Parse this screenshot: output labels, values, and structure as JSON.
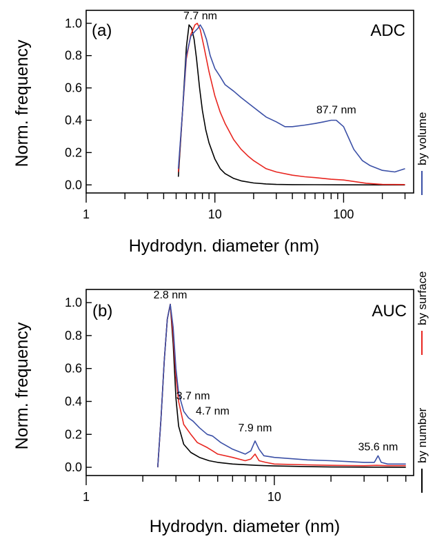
{
  "chart_data": [
    {
      "type": "line",
      "panel_label": "(a)",
      "method": "ADC",
      "xlabel": "Hydrodyn. diameter (nm)",
      "ylabel": "Norm. frequency",
      "xscale": "log",
      "xlim": [
        1,
        350
      ],
      "ylim": [
        -0.05,
        1.08
      ],
      "xticks": [
        1,
        10,
        100
      ],
      "xtick_labels": [
        "1",
        "10",
        "100"
      ],
      "yticks": [
        0.0,
        0.2,
        0.4,
        0.6,
        0.8,
        1.0
      ],
      "ytick_labels": [
        "0.0",
        "0.2",
        "0.4",
        "0.6",
        "0.8",
        "1.0"
      ],
      "annotations": [
        {
          "text": "7.7 nm",
          "x": 7.7,
          "y": 1.0
        },
        {
          "text": "87.7 nm",
          "x": 87.7,
          "y": 0.4
        }
      ],
      "series": [
        {
          "name": "by number",
          "color": "#000000",
          "x": [
            5.2,
            5.6,
            6.0,
            6.3,
            6.6,
            6.9,
            7.2,
            7.6,
            8.0,
            8.5,
            9.0,
            10,
            11,
            12,
            14,
            16,
            20,
            25,
            30,
            40,
            60,
            100,
            200,
            300
          ],
          "y": [
            0.05,
            0.45,
            0.85,
            0.99,
            0.97,
            0.9,
            0.78,
            0.6,
            0.46,
            0.34,
            0.26,
            0.16,
            0.1,
            0.07,
            0.04,
            0.025,
            0.012,
            0.006,
            0.003,
            0.0015,
            0.001,
            0.0005,
            0.0,
            0.0
          ]
        },
        {
          "name": "by surface",
          "color": "#e8251f",
          "x": [
            5.2,
            5.6,
            6.0,
            6.5,
            7.0,
            7.3,
            7.7,
            8.2,
            9,
            10,
            11,
            12,
            14,
            16,
            18,
            20,
            25,
            30,
            40,
            50,
            60,
            80,
            100,
            150,
            200,
            300
          ],
          "y": [
            0.08,
            0.45,
            0.78,
            0.93,
            0.99,
            1.0,
            0.96,
            0.86,
            0.7,
            0.55,
            0.45,
            0.38,
            0.28,
            0.22,
            0.18,
            0.15,
            0.1,
            0.08,
            0.06,
            0.05,
            0.045,
            0.035,
            0.03,
            0.01,
            0.003,
            0.002
          ]
        },
        {
          "name": "by volume",
          "color": "#3a4fa6",
          "x": [
            5.2,
            5.6,
            6.0,
            6.5,
            7.0,
            7.4,
            7.7,
            8.1,
            8.6,
            9.2,
            10,
            11,
            12,
            14,
            16,
            20,
            25,
            30,
            35,
            40,
            50,
            60,
            70,
            80,
            87.7,
            100,
            120,
            140,
            160,
            200,
            250,
            300
          ],
          "y": [
            0.1,
            0.45,
            0.8,
            0.92,
            0.95,
            0.97,
            0.99,
            0.96,
            0.9,
            0.8,
            0.72,
            0.67,
            0.62,
            0.58,
            0.54,
            0.48,
            0.42,
            0.39,
            0.36,
            0.36,
            0.37,
            0.38,
            0.39,
            0.4,
            0.4,
            0.36,
            0.22,
            0.15,
            0.12,
            0.09,
            0.08,
            0.1
          ]
        }
      ]
    },
    {
      "type": "line",
      "panel_label": "(b)",
      "method": "AUC",
      "xlabel": "Hydrodyn. diameter (nm)",
      "ylabel": "Norm. frequency",
      "xscale": "log",
      "xlim": [
        1,
        55
      ],
      "ylim": [
        -0.05,
        1.08
      ],
      "xticks": [
        1,
        10
      ],
      "xtick_labels": [
        "1",
        "10"
      ],
      "yticks": [
        0.0,
        0.2,
        0.4,
        0.6,
        0.8,
        1.0
      ],
      "ytick_labels": [
        "0.0",
        "0.2",
        "0.4",
        "0.6",
        "0.8",
        "1.0"
      ],
      "annotations": [
        {
          "text": "2.8 nm",
          "x": 2.8,
          "y": 1.0
        },
        {
          "text": "3.7 nm",
          "x": 3.7,
          "y": 0.32
        },
        {
          "text": "4.7 nm",
          "x": 4.7,
          "y": 0.22
        },
        {
          "text": "7.9 nm",
          "x": 7.9,
          "y": 0.16
        },
        {
          "text": "35.6 nm",
          "x": 35.6,
          "y": 0.07
        }
      ],
      "series": [
        {
          "name": "by number",
          "color": "#000000",
          "x": [
            2.4,
            2.5,
            2.6,
            2.7,
            2.8,
            2.9,
            3.0,
            3.1,
            3.3,
            3.6,
            4.0,
            4.5,
            5,
            6,
            8,
            10,
            15,
            20,
            30,
            40,
            50
          ],
          "y": [
            0.0,
            0.3,
            0.65,
            0.9,
            0.99,
            0.75,
            0.42,
            0.25,
            0.14,
            0.09,
            0.06,
            0.04,
            0.03,
            0.02,
            0.012,
            0.008,
            0.004,
            0.002,
            0.001,
            0.0005,
            0.0
          ]
        },
        {
          "name": "by surface",
          "color": "#e8251f",
          "x": [
            2.4,
            2.5,
            2.6,
            2.7,
            2.8,
            2.9,
            3.0,
            3.1,
            3.3,
            3.6,
            3.9,
            4.4,
            4.7,
            5.0,
            6.0,
            7.0,
            7.5,
            7.9,
            8.3,
            9.0,
            10,
            15,
            20,
            30,
            35,
            40,
            50
          ],
          "y": [
            0.0,
            0.3,
            0.65,
            0.9,
            0.99,
            0.8,
            0.55,
            0.4,
            0.26,
            0.2,
            0.15,
            0.12,
            0.1,
            0.08,
            0.06,
            0.04,
            0.05,
            0.08,
            0.04,
            0.03,
            0.02,
            0.015,
            0.012,
            0.01,
            0.012,
            0.01,
            0.01
          ]
        },
        {
          "name": "by volume",
          "color": "#3a4fa6",
          "x": [
            2.4,
            2.5,
            2.6,
            2.7,
            2.8,
            2.9,
            3.0,
            3.1,
            3.3,
            3.5,
            3.7,
            4.0,
            4.4,
            4.7,
            5.2,
            6.0,
            7.0,
            7.5,
            7.9,
            8.3,
            8.8,
            10,
            15,
            20,
            30,
            34,
            35.6,
            37,
            40,
            50
          ],
          "y": [
            0.0,
            0.3,
            0.65,
            0.9,
            0.99,
            0.85,
            0.6,
            0.45,
            0.34,
            0.3,
            0.28,
            0.24,
            0.2,
            0.19,
            0.15,
            0.11,
            0.08,
            0.1,
            0.16,
            0.11,
            0.07,
            0.06,
            0.045,
            0.04,
            0.03,
            0.03,
            0.07,
            0.03,
            0.02,
            0.02
          ]
        }
      ]
    }
  ]
}
